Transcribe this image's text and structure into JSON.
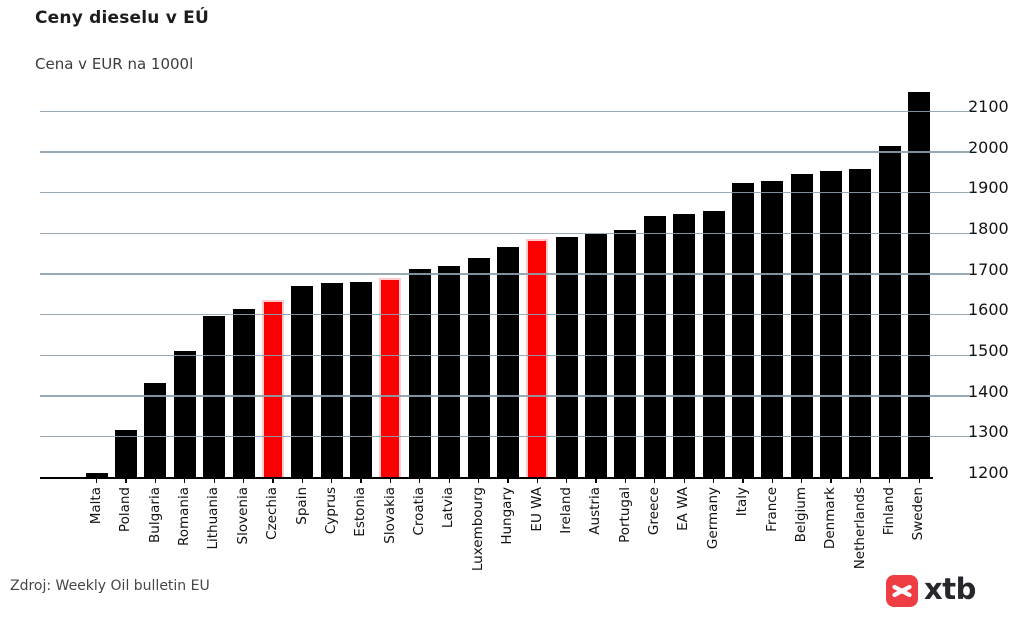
{
  "header": {
    "title": "Ceny dieselu v EÚ",
    "subtitle": "Cena v EUR na 1000l"
  },
  "footer": {
    "source": "Zdroj: Weekly Oil bulletin EU",
    "brand": "xtb",
    "brand_icon": "xtb-x-icon"
  },
  "colors": {
    "bar": "#000000",
    "highlight_bar": "#fa0000",
    "highlight_edge": "#ffc9ce",
    "gridline": "#8da1ad",
    "axis": "#000000",
    "logo_red": "#ee3e44",
    "title_text": "#1c1c1c",
    "source_text": "#474747"
  },
  "chart_data": {
    "type": "bar",
    "title": "Ceny dieselu v EÚ",
    "subtitle": "Cena v EUR na 1000l",
    "xlabel": "",
    "ylabel": "",
    "ylim": [
      1200,
      2169
    ],
    "yticks": [
      1200,
      1300,
      1400,
      1500,
      1600,
      1700,
      1800,
      1900,
      2000,
      2100
    ],
    "grid": true,
    "legend": false,
    "bar_color": "black",
    "highlight_color": "red",
    "categories": [
      "Malta",
      "Poland",
      "Bulgaria",
      "Romania",
      "Lithuania",
      "Slovenia",
      "Czechia",
      "Spain",
      "Cyprus",
      "Estonia",
      "Slovakia",
      "Croatia",
      "Latvia",
      "Luxembourg",
      "Hungary",
      "EU WA",
      "Ireland",
      "Austria",
      "Portugal",
      "Greece",
      "EA WA",
      "Germany",
      "Italy",
      "France",
      "Belgium",
      "Denmark",
      "Netherlands",
      "Finland",
      "Sweden"
    ],
    "values": [
      1212,
      1317,
      1433,
      1512,
      1598,
      1616,
      1638,
      1672,
      1680,
      1683,
      1692,
      1714,
      1721,
      1742,
      1767,
      1788,
      1793,
      1799,
      1810,
      1845,
      1850,
      1856,
      1926,
      1931,
      1947,
      1956,
      1959,
      2016,
      2150
    ],
    "highlighted": [
      "Czechia",
      "Slovakia",
      "EU WA"
    ]
  }
}
